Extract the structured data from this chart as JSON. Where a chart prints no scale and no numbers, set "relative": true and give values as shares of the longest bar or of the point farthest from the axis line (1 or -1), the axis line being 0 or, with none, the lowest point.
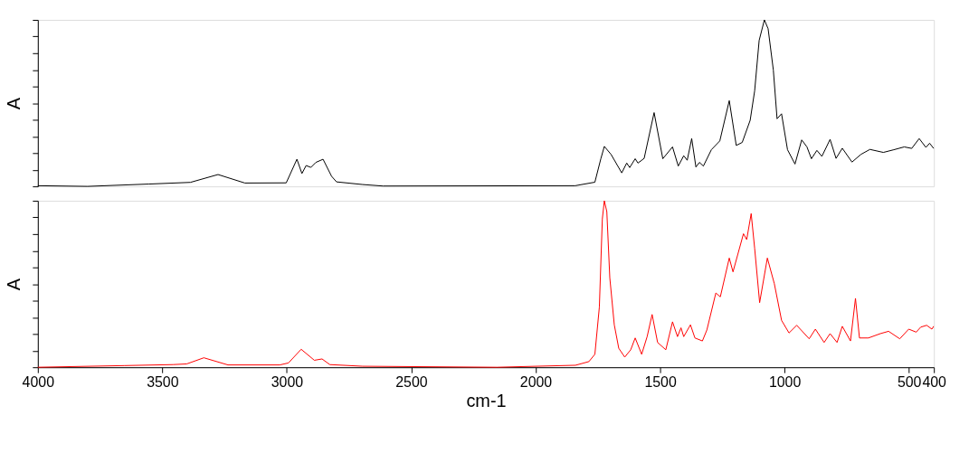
{
  "chart_data": [
    {
      "type": "line",
      "relative": true,
      "ylabel": "A",
      "xlim": [
        4000,
        400
      ],
      "tick_labels": false,
      "grid": false,
      "marker": "none",
      "line_style": "solid",
      "series": [
        {
          "color": "#000000",
          "x": [
            4000,
            3800,
            3553,
            3387,
            3276,
            3168,
            3002,
            2959,
            2939,
            2922,
            2903,
            2883,
            2854,
            2820,
            2800,
            2695,
            2613,
            1841,
            1762,
            1738,
            1724,
            1697,
            1654,
            1634,
            1622,
            1600,
            1589,
            1564,
            1524,
            1489,
            1450,
            1427,
            1405,
            1391,
            1373,
            1356,
            1342,
            1326,
            1294,
            1260,
            1222,
            1194,
            1170,
            1138,
            1120,
            1102,
            1081,
            1066,
            1045,
            1030,
            1012,
            988,
            958,
            931,
            910,
            892,
            870,
            850,
            817,
            793,
            768,
            729,
            693,
            657,
            603,
            561,
            519,
            489,
            459,
            432,
            417,
            401
          ],
          "values": [
            0.004,
            0.0,
            0.014,
            0.024,
            0.071,
            0.02,
            0.021,
            0.163,
            0.077,
            0.125,
            0.114,
            0.144,
            0.163,
            0.061,
            0.027,
            0.011,
            0.002,
            0.004,
            0.025,
            0.166,
            0.24,
            0.192,
            0.081,
            0.14,
            0.113,
            0.166,
            0.14,
            0.168,
            0.443,
            0.166,
            0.237,
            0.122,
            0.184,
            0.157,
            0.287,
            0.116,
            0.144,
            0.122,
            0.22,
            0.273,
            0.515,
            0.246,
            0.264,
            0.397,
            0.574,
            0.876,
            1.0,
            0.947,
            0.699,
            0.406,
            0.436,
            0.22,
            0.134,
            0.279,
            0.237,
            0.166,
            0.216,
            0.18,
            0.282,
            0.168,
            0.229,
            0.146,
            0.192,
            0.222,
            0.204,
            0.22,
            0.237,
            0.228,
            0.287,
            0.234,
            0.259,
            0.228
          ]
        }
      ]
    },
    {
      "type": "line",
      "relative": true,
      "ylabel": "A",
      "xlabel": "cm-1",
      "xlim": [
        4000,
        400
      ],
      "xticks": [
        4000,
        3500,
        3000,
        2500,
        2000,
        1500,
        1000,
        500,
        400
      ],
      "tick_labels": "x",
      "grid": false,
      "marker": "none",
      "line_style": "solid",
      "series": [
        {
          "color": "#ff0000",
          "x": [
            4000,
            3651,
            3457,
            3402,
            3333,
            3236,
            3028,
            2993,
            2942,
            2889,
            2858,
            2827,
            2695,
            2155,
            1840,
            1786,
            1762,
            1744,
            1732,
            1724,
            1714,
            1702,
            1684,
            1666,
            1642,
            1618,
            1600,
            1574,
            1552,
            1532,
            1510,
            1477,
            1450,
            1430,
            1416,
            1405,
            1378,
            1360,
            1330,
            1312,
            1276,
            1258,
            1222,
            1207,
            1165,
            1152,
            1134,
            1120,
            1100,
            1069,
            1041,
            1012,
            982,
            951,
            901,
            876,
            841,
            817,
            789,
            768,
            735,
            715,
            699,
            663,
            615,
            582,
            537,
            501,
            471,
            453,
            429,
            408,
            401
          ],
          "values": [
            0.0,
            0.01,
            0.016,
            0.02,
            0.057,
            0.014,
            0.014,
            0.026,
            0.108,
            0.042,
            0.05,
            0.016,
            0.006,
            0.0,
            0.012,
            0.034,
            0.078,
            0.361,
            0.891,
            1.0,
            0.935,
            0.538,
            0.255,
            0.114,
            0.061,
            0.105,
            0.176,
            0.078,
            0.184,
            0.317,
            0.149,
            0.105,
            0.273,
            0.184,
            0.237,
            0.184,
            0.255,
            0.176,
            0.158,
            0.224,
            0.446,
            0.423,
            0.656,
            0.573,
            0.802,
            0.767,
            0.923,
            0.714,
            0.388,
            0.656,
            0.502,
            0.282,
            0.206,
            0.252,
            0.171,
            0.229,
            0.149,
            0.202,
            0.149,
            0.246,
            0.158,
            0.414,
            0.176,
            0.176,
            0.202,
            0.216,
            0.171,
            0.229,
            0.211,
            0.241,
            0.252,
            0.229,
            0.246
          ]
        }
      ]
    }
  ]
}
